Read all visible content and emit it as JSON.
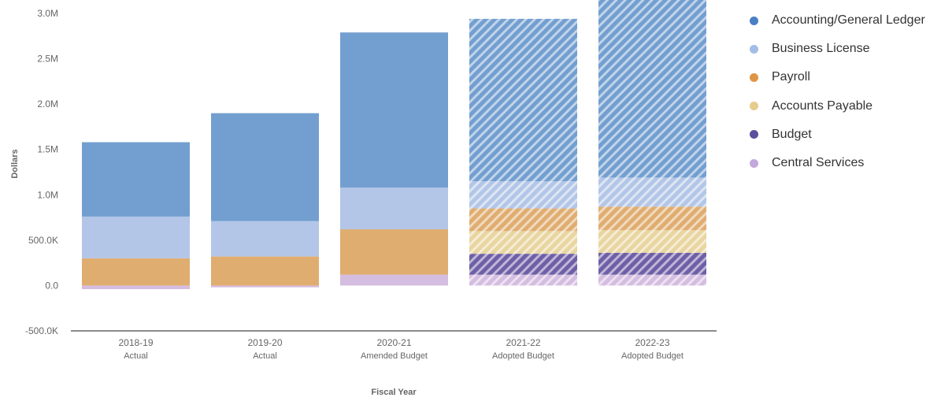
{
  "chart_data": {
    "type": "bar",
    "stacked": true,
    "xlabel": "Fiscal Year",
    "ylabel": "Dollars",
    "ylim": [
      -500000,
      3000000
    ],
    "y_ticks": [
      {
        "value": 3000000,
        "label": "3.0M"
      },
      {
        "value": 2500000,
        "label": "2.5M"
      },
      {
        "value": 2000000,
        "label": "2.0M"
      },
      {
        "value": 1500000,
        "label": "1.5M"
      },
      {
        "value": 1000000,
        "label": "1.0M"
      },
      {
        "value": 500000,
        "label": "500.0K"
      },
      {
        "value": 0,
        "label": "0.0"
      },
      {
        "value": -500000,
        "label": "-500.0K"
      }
    ],
    "categories": [
      {
        "year": "2018-19",
        "type": "Actual",
        "projected": false
      },
      {
        "year": "2019-20",
        "type": "Actual",
        "projected": false
      },
      {
        "year": "2020-21",
        "type": "Amended Budget",
        "projected": false
      },
      {
        "year": "2021-22",
        "type": "Adopted Budget",
        "projected": true
      },
      {
        "year": "2022-23",
        "type": "Adopted Budget",
        "projected": true
      }
    ],
    "series": [
      {
        "name": "Central Services",
        "color": "#d4bde0",
        "values": [
          -40000,
          -20000,
          120000,
          120000,
          120000
        ]
      },
      {
        "name": "Budget",
        "color": "#6e5fa6",
        "values": [
          0,
          0,
          0,
          230000,
          240000
        ]
      },
      {
        "name": "Accounts Payable",
        "color": "#e8d5a0",
        "values": [
          0,
          0,
          0,
          250000,
          250000
        ]
      },
      {
        "name": "Payroll",
        "color": "#e0ad70",
        "values": [
          300000,
          320000,
          500000,
          250000,
          260000
        ]
      },
      {
        "name": "Business License",
        "color": "#b3c6e7",
        "values": [
          460000,
          390000,
          460000,
          300000,
          320000
        ]
      },
      {
        "name": "Accounting/General Ledger",
        "color": "#739fd0",
        "values": [
          820000,
          1190000,
          1710000,
          1790000,
          2000000
        ]
      }
    ],
    "legend_position": "right",
    "grid": false
  },
  "legend": {
    "items": [
      {
        "label": "Accounting/General Ledger",
        "color": "#4a7fc4"
      },
      {
        "label": "Business License",
        "color": "#a3bde6"
      },
      {
        "label": "Payroll",
        "color": "#df9545"
      },
      {
        "label": "Accounts Payable",
        "color": "#e6cc8e"
      },
      {
        "label": "Budget",
        "color": "#5c4e9c"
      },
      {
        "label": "Central Services",
        "color": "#c4a8dc"
      }
    ]
  }
}
